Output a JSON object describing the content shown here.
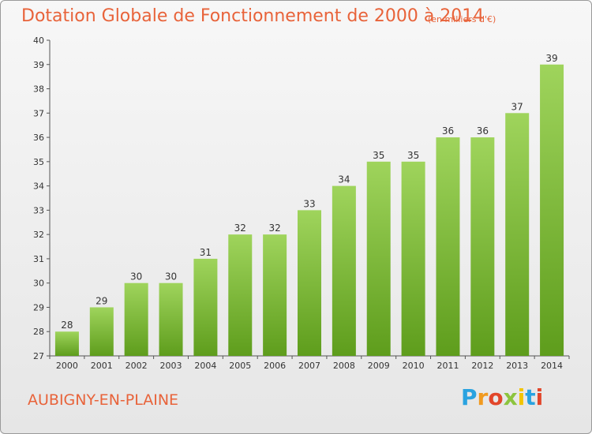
{
  "header": {
    "title": "Dotation Globale de Fonctionnement de 2000 à 2014",
    "unit": "(en milliers d'€)"
  },
  "footer": {
    "commune": "AUBIGNY-EN-PLAINE",
    "logo_letters": [
      "P",
      "r",
      "o",
      "x",
      "i",
      "t",
      "i"
    ],
    "logo_colors": [
      "#2aa3e0",
      "#f19a1f",
      "#e2462a",
      "#8cc43e",
      "#f2c400",
      "#2aa3e0",
      "#e2462a"
    ]
  },
  "colors": {
    "bar_light": "#9fd45c",
    "bar_dark": "#5e9d1c",
    "text_accent": "#e8633a"
  },
  "chart_data": {
    "type": "bar",
    "categories": [
      "2000",
      "2001",
      "2002",
      "2003",
      "2004",
      "2005",
      "2006",
      "2007",
      "2008",
      "2009",
      "2010",
      "2011",
      "2012",
      "2013",
      "2014"
    ],
    "values": [
      28,
      29,
      30,
      30,
      31,
      32,
      32,
      33,
      34,
      35,
      35,
      36,
      36,
      37,
      39
    ],
    "ylim": [
      27,
      40
    ],
    "yticks": [
      27,
      28,
      29,
      30,
      31,
      32,
      33,
      34,
      35,
      36,
      37,
      38,
      39,
      40
    ],
    "grid": false,
    "value_labels": true
  }
}
